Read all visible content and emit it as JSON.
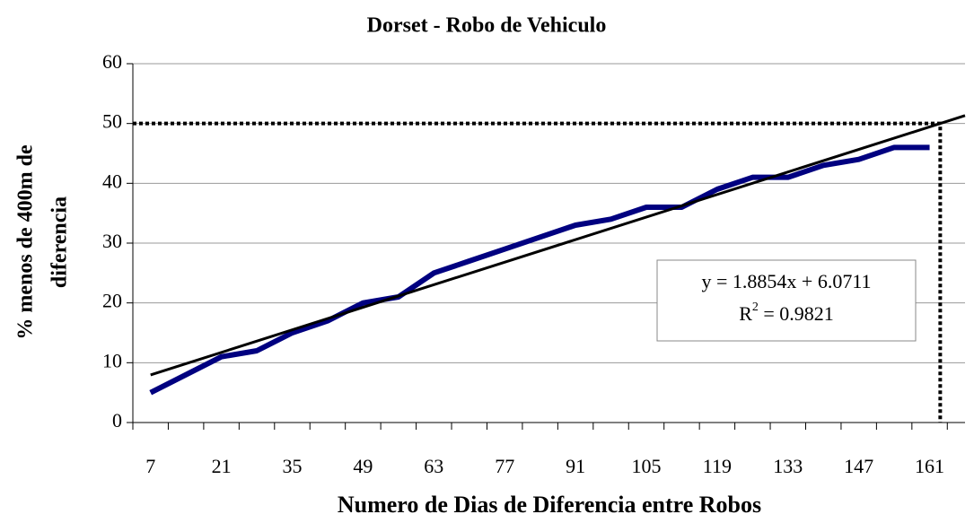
{
  "chart_data": {
    "type": "line",
    "title": "Dorset - Robo de Vehiculo",
    "xlabel": "Numero de Dias de Diferencia entre Robos",
    "ylabel_lines": [
      "% menos de 400m de",
      "diferencia"
    ],
    "categories": [
      "7",
      null,
      "21",
      null,
      "35",
      null,
      "49",
      null,
      "63",
      null,
      "77",
      null,
      "91",
      null,
      "105",
      null,
      "119",
      null,
      "133",
      null,
      "147",
      null,
      "161"
    ],
    "series": [
      {
        "name": "Dorset",
        "color": "#000080",
        "values": [
          5,
          8,
          11,
          12,
          15,
          17,
          20,
          21,
          25,
          27,
          29,
          31,
          33,
          34,
          36,
          36,
          39,
          41,
          41,
          43,
          44,
          46,
          46
        ]
      }
    ],
    "ylim": [
      0,
      60
    ],
    "yticks": [
      0,
      10,
      20,
      30,
      40,
      50,
      60
    ],
    "grid": true,
    "trendline": {
      "slope": 1.8854,
      "intercept": 6.0711,
      "forward": 1,
      "color": "#000000",
      "equation": "y = 1.8854x + 6.0711",
      "r2_label": {
        "base": "R",
        "sup": "2",
        "rest": " = 0.9821"
      }
    },
    "reference_y": 50
  }
}
